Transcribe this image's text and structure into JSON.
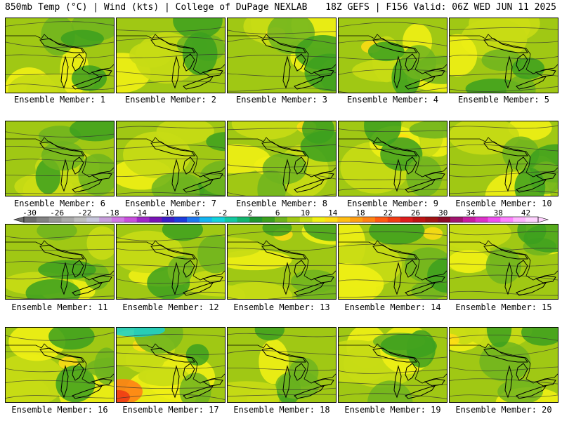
{
  "header": {
    "title": "850mb Temp (°C) | Wind (kts) | College of DuPage NEXLAB",
    "run_info": "18Z GEFS | F156 Valid: 06Z WED JUN 11 2025"
  },
  "members": [
    {
      "label": "Ensemble Member: 1",
      "warm": 0.35
    },
    {
      "label": "Ensemble Member: 2",
      "warm": 0.2
    },
    {
      "label": "Ensemble Member: 3",
      "warm": 0.35
    },
    {
      "label": "Ensemble Member: 4",
      "warm": 0.45
    },
    {
      "label": "Ensemble Member: 5",
      "warm": 0.3
    },
    {
      "label": "Ensemble Member: 6",
      "warm": 0.15
    },
    {
      "label": "Ensemble Member: 7",
      "warm": 0.15
    },
    {
      "label": "Ensemble Member: 8",
      "warm": 0.4
    },
    {
      "label": "Ensemble Member: 9",
      "warm": 0.35
    },
    {
      "label": "Ensemble Member: 10",
      "warm": 0.3
    },
    {
      "label": "Ensemble Member: 11",
      "warm": 0.25
    },
    {
      "label": "Ensemble Member: 12",
      "warm": 0.2
    },
    {
      "label": "Ensemble Member: 13",
      "warm": 0.5
    },
    {
      "label": "Ensemble Member: 14",
      "warm": 0.45
    },
    {
      "label": "Ensemble Member: 15",
      "warm": 0.3
    },
    {
      "label": "Ensemble Member: 16",
      "warm": 0.4
    },
    {
      "label": "Ensemble Member: 17",
      "warm": 0.6
    },
    {
      "label": "Ensemble Member: 18",
      "warm": 0.25
    },
    {
      "label": "Ensemble Member: 19",
      "warm": 0.3
    },
    {
      "label": "Ensemble Member: 20",
      "warm": 0.35
    }
  ],
  "colorbar": {
    "labels": [
      "-30",
      "-26",
      "-22",
      "-18",
      "-14",
      "-10",
      "-6",
      "-2",
      "2",
      "6",
      "10",
      "14",
      "18",
      "22",
      "26",
      "30",
      "34",
      "38",
      "42"
    ],
    "colors": [
      "#6e6e6e",
      "#828282",
      "#969696",
      "#aaaaaa",
      "#bebebe",
      "#c8c8dc",
      "#c8a0dc",
      "#d278e6",
      "#c850dc",
      "#a028c8",
      "#7814b4",
      "#3c1ec8",
      "#1e3cdc",
      "#1e78f0",
      "#14b4f0",
      "#14d2dc",
      "#14c8a0",
      "#14b46e",
      "#1e9632",
      "#3ca01e",
      "#6eb41e",
      "#a0c814",
      "#c8dc14",
      "#f0f014",
      "#ffdc14",
      "#ffbe14",
      "#ffa014",
      "#ff8214",
      "#ff5a14",
      "#f03c14",
      "#dc1e1e",
      "#be1414",
      "#a01414",
      "#8c0a28",
      "#a0146e",
      "#c81ea0",
      "#dc32c8",
      "#f050f0",
      "#ff82ff",
      "#ffb4ff",
      "#ffd2ff"
    ]
  }
}
